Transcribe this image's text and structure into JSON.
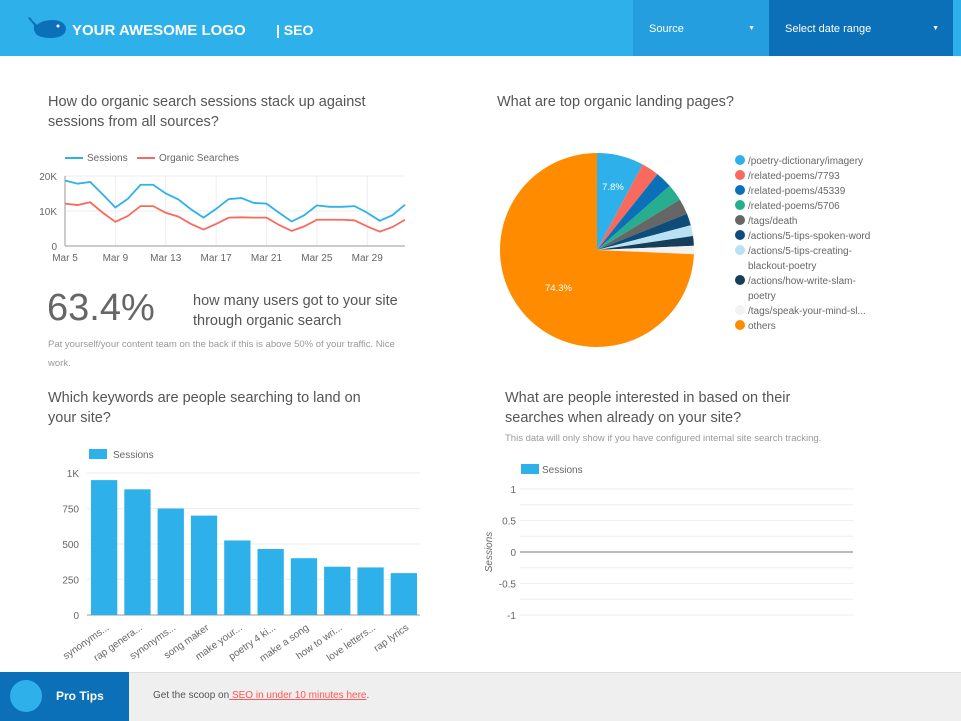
{
  "header": {
    "logo_text": "YOUR AWESOME LOGO",
    "section": "| SEO",
    "source_label": "Source",
    "date_label": "Select date range",
    "color": "#2eb1ea"
  },
  "sessions_chart": {
    "title": "How do organic search sessions stack up against sessions from all sources?"
  },
  "stat": {
    "value": "63.4%",
    "label": "how many users got to your site through organic search",
    "note": "Pat yourself/your content team on the back if this is above 50% of your traffic. Nice work."
  },
  "pie_section": {
    "title": "What are top organic landing pages?"
  },
  "keywords_section": {
    "title": "Which keywords are people searching to land on your site?"
  },
  "site_search_section": {
    "title": "What are people interested in based on their searches when already on your site?",
    "note": "This data will only show if you have configured internal site search tracking."
  },
  "footer": {
    "label": "Pro Tips",
    "text": "Get the scoop on",
    "link": " SEO in under 10 minutes here",
    "end": "."
  },
  "chart_data": [
    {
      "type": "line",
      "x": [
        "Mar 5",
        "Mar 6",
        "Mar 7",
        "Mar 8",
        "Mar 9",
        "Mar 10",
        "Mar 11",
        "Mar 12",
        "Mar 13",
        "Mar 14",
        "Mar 15",
        "Mar 16",
        "Mar 17",
        "Mar 18",
        "Mar 19",
        "Mar 20",
        "Mar 21",
        "Mar 22",
        "Mar 23",
        "Mar 24",
        "Mar 25",
        "Mar 26",
        "Mar 27",
        "Mar 28",
        "Mar 29",
        "Mar 30",
        "Mar 31",
        "Apr 1"
      ],
      "x_ticks": [
        "Mar 5",
        "Mar 9",
        "Mar 13",
        "Mar 17",
        "Mar 21",
        "Mar 25",
        "Mar 29"
      ],
      "y_ticks": [
        "0",
        "10K",
        "20K"
      ],
      "ylim": [
        0,
        20000
      ],
      "legend": "top-left",
      "series": [
        {
          "name": "Sessions",
          "color": "#2eb1ea",
          "values": [
            18700,
            17800,
            18300,
            14700,
            11000,
            13500,
            17500,
            17500,
            15000,
            13300,
            10500,
            8100,
            10600,
            13400,
            13700,
            12300,
            12100,
            9500,
            7000,
            8800,
            11600,
            11200,
            11200,
            11400,
            9500,
            7200,
            8800,
            11800
          ]
        },
        {
          "name": "Organic Searches",
          "color": "#f86a5d",
          "values": [
            12100,
            11700,
            12500,
            9500,
            6900,
            8600,
            11400,
            11400,
            9500,
            8400,
            6300,
            4700,
            6300,
            8100,
            8200,
            8100,
            8100,
            6000,
            4300,
            5600,
            7500,
            7500,
            7500,
            7300,
            5600,
            4100,
            5400,
            7500
          ]
        }
      ]
    },
    {
      "type": "pie",
      "legend": "right",
      "slices": [
        {
          "label": "/poetry-dictionary/imagery",
          "value": 7.8,
          "color": "#2eb1ea",
          "data_label": "7.8%"
        },
        {
          "label": "/related-poems/7793",
          "value": 2.9,
          "color": "#f86a5d"
        },
        {
          "label": "/related-poems/45339",
          "value": 2.8,
          "color": "#0b70b7"
        },
        {
          "label": "/related-poems/5706",
          "value": 2.8,
          "color": "#27ae8e"
        },
        {
          "label": "/tags/death",
          "value": 2.6,
          "color": "#666666"
        },
        {
          "label": "/actions/5-tips-spoken-word",
          "value": 2.0,
          "color": "#0e4c7a"
        },
        {
          "label": "/actions/5-tips-creating-blackout-poetry",
          "value": 1.8,
          "color": "#b8e2f3"
        },
        {
          "label": "/actions/how-write-slam-poetry",
          "value": 1.6,
          "color": "#163e5a"
        },
        {
          "label": "/tags/speak-your-mind-sl...",
          "value": 1.4,
          "color": "#f2f2f2"
        },
        {
          "label": "others",
          "value": 74.3,
          "color": "#ff8c00",
          "data_label": "74.3%"
        }
      ]
    },
    {
      "type": "bar",
      "categories": [
        "synonyms...",
        "rap genera...",
        "synonyms...",
        "song maker",
        "make your...",
        "poetry 4 ki...",
        "make a song",
        "how to wri...",
        "love letters...",
        "rap lyrics"
      ],
      "series": [
        {
          "name": "Sessions",
          "color": "#2eb1ea",
          "values": [
            950,
            885,
            750,
            700,
            525,
            465,
            400,
            340,
            335,
            295
          ]
        }
      ],
      "y_ticks": [
        "0",
        "250",
        "500",
        "750",
        "1K"
      ],
      "ylim": [
        0,
        1000
      ],
      "legend": "top-left"
    },
    {
      "type": "bar",
      "categories": [],
      "series": [
        {
          "name": "Sessions",
          "color": "#2eb1ea",
          "values": []
        }
      ],
      "ylabel": "Sessions",
      "y_ticks": [
        "-1",
        "-0.5",
        "0",
        "0.5",
        "1"
      ],
      "ylim": [
        -1,
        1
      ],
      "legend": "top-left"
    }
  ]
}
